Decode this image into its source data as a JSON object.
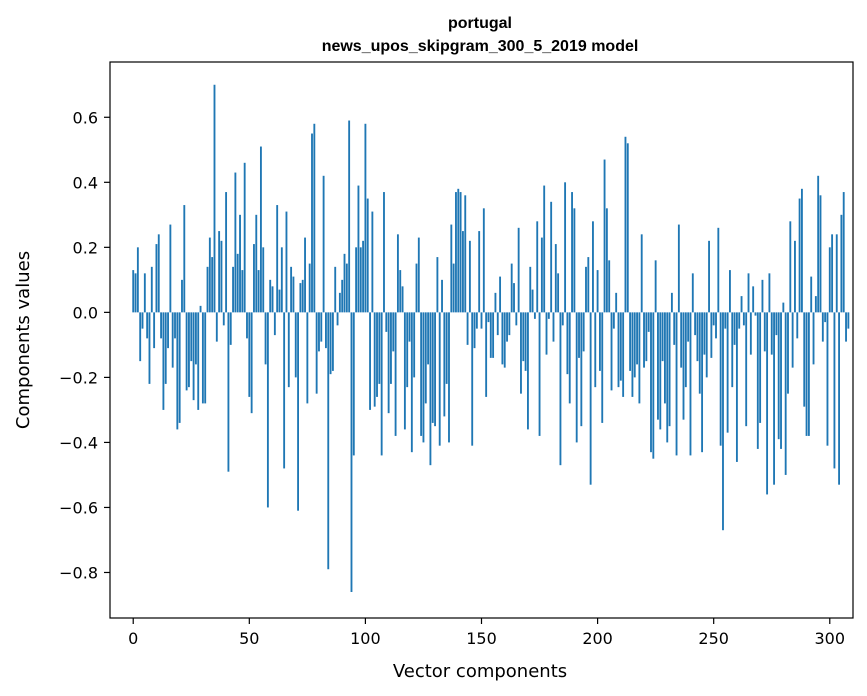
{
  "chart_data": {
    "type": "bar",
    "title": "portugal",
    "subtitle": "news_upos_skipgram_300_5_2019 model",
    "xlabel": "Vector components",
    "ylabel": "Components values",
    "xlim": [
      -10,
      310
    ],
    "ylim": [
      -0.94,
      0.77
    ],
    "xticks": [
      0,
      50,
      100,
      150,
      200,
      250,
      300
    ],
    "yticks": [
      -0.8,
      -0.6,
      -0.4,
      -0.2,
      0.0,
      0.2,
      0.4,
      0.6
    ],
    "ytick_labels": [
      "−0.8",
      "−0.6",
      "−0.4",
      "−0.2",
      "0.0",
      "0.2",
      "0.4",
      "0.6"
    ],
    "bar_color": "#1f77b4",
    "grid": false,
    "values": [
      0.13,
      0.12,
      0.2,
      -0.15,
      -0.05,
      0.12,
      -0.08,
      -0.22,
      0.14,
      -0.11,
      0.21,
      0.24,
      -0.08,
      -0.3,
      -0.22,
      -0.11,
      0.27,
      -0.17,
      -0.08,
      -0.36,
      -0.34,
      0.1,
      0.33,
      -0.24,
      -0.23,
      -0.15,
      -0.27,
      -0.16,
      -0.3,
      0.02,
      -0.28,
      -0.28,
      0.14,
      0.23,
      0.17,
      0.7,
      -0.09,
      0.25,
      0.22,
      -0.04,
      0.37,
      -0.49,
      -0.1,
      0.14,
      0.43,
      0.18,
      0.3,
      0.13,
      0.46,
      -0.08,
      -0.26,
      -0.31,
      0.21,
      0.3,
      0.13,
      0.51,
      0.2,
      -0.16,
      -0.6,
      0.1,
      0.08,
      -0.07,
      0.33,
      0.07,
      0.2,
      -0.48,
      0.31,
      -0.23,
      0.14,
      0.11,
      -0.2,
      -0.61,
      0.09,
      0.1,
      0.23,
      -0.28,
      0.15,
      0.55,
      0.58,
      -0.25,
      -0.12,
      -0.09,
      0.42,
      -0.11,
      -0.79,
      -0.19,
      -0.18,
      0.14,
      -0.04,
      0.06,
      0.1,
      0.18,
      0.15,
      0.59,
      -0.86,
      -0.44,
      0.2,
      0.39,
      0.2,
      0.22,
      0.58,
      0.35,
      -0.3,
      0.31,
      -0.29,
      -0.26,
      -0.22,
      -0.44,
      0.37,
      -0.06,
      -0.31,
      -0.22,
      -0.12,
      -0.38,
      0.24,
      0.13,
      0.08,
      -0.36,
      -0.23,
      -0.09,
      -0.43,
      -0.2,
      0.15,
      0.23,
      -0.38,
      -0.4,
      -0.28,
      -0.16,
      -0.47,
      -0.34,
      -0.35,
      0.17,
      -0.41,
      0.1,
      -0.32,
      -0.22,
      -0.4,
      0.27,
      0.15,
      0.37,
      0.38,
      0.37,
      0.25,
      0.36,
      -0.1,
      0.22,
      -0.41,
      -0.11,
      -0.05,
      0.25,
      -0.05,
      0.32,
      -0.26,
      -0.03,
      -0.14,
      -0.14,
      0.06,
      -0.07,
      0.11,
      -0.16,
      -0.17,
      -0.09,
      -0.07,
      0.15,
      0.09,
      -0.04,
      0.26,
      -0.25,
      -0.15,
      -0.18,
      -0.36,
      0.14,
      0.07,
      -0.02,
      0.28,
      -0.38,
      0.23,
      0.39,
      -0.13,
      -0.02,
      0.34,
      -0.09,
      0.21,
      0.12,
      -0.47,
      -0.04,
      0.4,
      -0.19,
      -0.28,
      0.37,
      0.32,
      -0.4,
      -0.14,
      -0.35,
      -0.12,
      0.14,
      0.17,
      -0.53,
      0.28,
      -0.23,
      0.13,
      -0.18,
      -0.34,
      0.47,
      0.32,
      0.16,
      -0.24,
      -0.05,
      0.06,
      -0.23,
      -0.21,
      -0.26,
      0.54,
      0.52,
      -0.18,
      -0.26,
      -0.2,
      -0.16,
      -0.28,
      0.24,
      -0.17,
      -0.15,
      -0.06,
      -0.43,
      -0.45,
      0.16,
      -0.33,
      -0.36,
      -0.15,
      -0.28,
      -0.4,
      -0.35,
      0.06,
      -0.1,
      -0.44,
      0.27,
      -0.17,
      -0.33,
      -0.23,
      -0.09,
      -0.44,
      0.12,
      -0.07,
      -0.15,
      -0.25,
      -0.43,
      -0.13,
      -0.2,
      0.22,
      -0.14,
      -0.04,
      -0.08,
      0.26,
      -0.41,
      -0.67,
      -0.05,
      -0.37,
      0.13,
      -0.23,
      -0.1,
      -0.46,
      -0.05,
      0.05,
      -0.04,
      -0.35,
      0.12,
      -0.13,
      0.08,
      -0.01,
      -0.42,
      -0.34,
      0.1,
      -0.12,
      -0.56,
      0.12,
      -0.13,
      -0.53,
      -0.07,
      -0.39,
      -0.42,
      0.03,
      -0.5,
      -0.25,
      0.28,
      -0.17,
      0.22,
      -0.08,
      0.35,
      0.38,
      -0.29,
      -0.38,
      -0.38,
      0.11,
      -0.16,
      0.05,
      0.42,
      0.36,
      -0.09,
      -0.03,
      -0.41,
      0.2,
      0.24,
      -0.48,
      0.24,
      -0.53,
      0.3,
      0.37,
      -0.09,
      -0.05
    ]
  }
}
